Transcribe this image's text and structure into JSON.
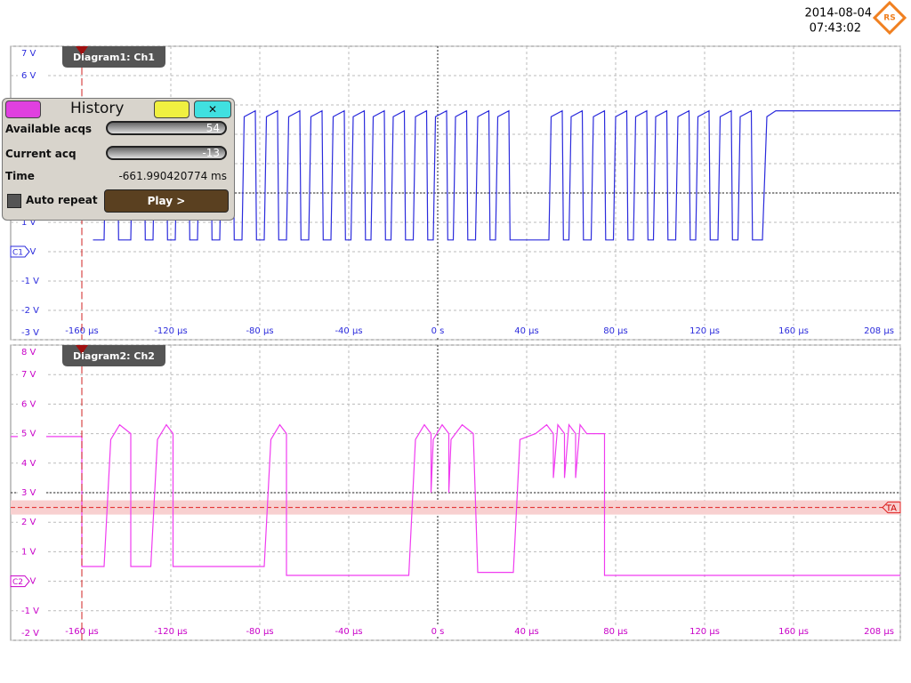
{
  "header": {
    "date": "2014-08-04",
    "time": "07:43:02"
  },
  "history": {
    "title": "History",
    "available_label": "Available acqs",
    "available": 54,
    "current_label": "Current acq",
    "current": -13,
    "time_label": "Time",
    "time": "-661.990420774 ms",
    "auto_repeat": "Auto repeat",
    "play": "Play >"
  },
  "chart_data": [
    {
      "type": "line",
      "title": "Diagram1: Ch1",
      "channel_label": "C1",
      "color": "#2b2bdc",
      "label_color": "#2b2bdc",
      "xlim": [
        -192,
        208
      ],
      "ylim": [
        -3,
        7
      ],
      "grid": true,
      "ground_level": 0,
      "reference_level": 2,
      "marker_x": -160,
      "xticks": [
        {
          "value": -160,
          "label": "-160 µs"
        },
        {
          "value": -120,
          "label": "-120 µs"
        },
        {
          "value": -80,
          "label": "-80 µs"
        },
        {
          "value": -40,
          "label": "-40 µs"
        },
        {
          "value": 0,
          "label": "0 s"
        },
        {
          "value": 40,
          "label": "40 µs"
        },
        {
          "value": 80,
          "label": "80 µs"
        },
        {
          "value": 120,
          "label": "120 µs"
        },
        {
          "value": 160,
          "label": "160 µs"
        },
        {
          "value": 208,
          "label": "208 µs"
        }
      ],
      "yticks": [
        {
          "value": 7,
          "label": "7 V"
        },
        {
          "value": 6,
          "label": "6 V"
        },
        {
          "value": 5,
          "label": "5 V"
        },
        {
          "value": 4,
          "label": "4 V"
        },
        {
          "value": 3,
          "label": "3 V"
        },
        {
          "value": 2,
          "label": "2 V"
        },
        {
          "value": 1,
          "label": "1 V"
        },
        {
          "value": 0,
          "label": "0 V"
        },
        {
          "value": -1,
          "label": "-1 V"
        },
        {
          "value": -2,
          "label": "-2 V"
        },
        {
          "value": -3,
          "label": "-3 V"
        }
      ],
      "x": [
        -155,
        -150,
        -149,
        -144,
        -143.5,
        -138,
        -137,
        -132,
        -131.5,
        -128,
        -127,
        -122,
        -121.5,
        -118,
        -117,
        -112,
        -111.5,
        -108,
        -107,
        -102,
        -101.5,
        -98,
        -97,
        -92,
        -91.5,
        -88,
        -87,
        -82,
        -81.5,
        -78,
        -77,
        -72,
        -71.5,
        -68,
        -67,
        -62,
        -61.5,
        -58,
        -57,
        -52,
        -51.5,
        -48,
        -47,
        -42,
        -41.5,
        -39,
        -38,
        -33,
        -32.5,
        -30,
        -29,
        -24,
        -23.5,
        -21,
        -20,
        -15,
        -14.5,
        -11,
        -10,
        -5,
        -4.5,
        -2,
        -1,
        4,
        4.5,
        7,
        8,
        13,
        13.5,
        17,
        18,
        23,
        23.5,
        26,
        27,
        32,
        32.5,
        50,
        51,
        56,
        56.5,
        59,
        60,
        65,
        65.5,
        69,
        70,
        75,
        75.5,
        79,
        80,
        85,
        85.5,
        88,
        89,
        94,
        94.5,
        97,
        98,
        103,
        103.5,
        107,
        108,
        113,
        113.5,
        116,
        117,
        122,
        122.5,
        126,
        127,
        132,
        132.5,
        135,
        136,
        141,
        141.5,
        146,
        148,
        152,
        208
      ],
      "values": [
        0.4,
        0.4,
        4.6,
        4.8,
        0.4,
        0.4,
        4.6,
        4.8,
        0.4,
        0.4,
        4.6,
        4.8,
        0.4,
        0.4,
        4.6,
        4.8,
        0.4,
        0.4,
        4.6,
        4.8,
        0.4,
        0.4,
        4.6,
        4.8,
        0.4,
        0.4,
        4.6,
        4.8,
        0.4,
        0.4,
        4.6,
        4.8,
        0.4,
        0.4,
        4.6,
        4.8,
        0.4,
        0.4,
        4.6,
        4.8,
        0.4,
        0.4,
        4.6,
        4.8,
        0.4,
        0.4,
        4.6,
        4.8,
        0.4,
        0.4,
        4.6,
        4.8,
        0.4,
        0.4,
        4.6,
        4.8,
        0.4,
        0.4,
        4.6,
        4.8,
        0.4,
        0.4,
        4.6,
        4.8,
        0.4,
        0.4,
        4.6,
        4.8,
        0.4,
        0.4,
        4.6,
        4.8,
        0.4,
        0.4,
        4.6,
        4.8,
        0.4,
        0.4,
        4.6,
        4.8,
        0.4,
        0.4,
        4.6,
        4.8,
        0.4,
        0.4,
        4.6,
        4.8,
        0.4,
        0.4,
        4.6,
        4.8,
        0.4,
        0.4,
        4.6,
        4.8,
        0.4,
        0.4,
        4.6,
        4.8,
        0.4,
        0.4,
        4.6,
        4.8,
        0.4,
        0.4,
        4.6,
        4.8,
        0.4,
        0.4,
        4.6,
        4.8,
        0.4,
        0.4,
        4.6,
        4.8,
        0.4,
        0.4,
        4.6,
        4.8,
        4.8
      ]
    },
    {
      "type": "line",
      "title": "Diagram2: Ch2",
      "channel_label": "C2",
      "color": "#f03cf0",
      "label_color": "#c800c8",
      "xlim": [
        -192,
        208
      ],
      "ylim": [
        -2,
        8
      ],
      "grid": true,
      "ground_level": 0,
      "reference_level": 3,
      "marker_x": -160,
      "trigger_level": 2.5,
      "trigger_label": "TA",
      "xticks": [
        {
          "value": -160,
          "label": "-160 µs"
        },
        {
          "value": -120,
          "label": "-120 µs"
        },
        {
          "value": -80,
          "label": "-80 µs"
        },
        {
          "value": -40,
          "label": "-40 µs"
        },
        {
          "value": 0,
          "label": "0 s"
        },
        {
          "value": 40,
          "label": "40 µs"
        },
        {
          "value": 80,
          "label": "80 µs"
        },
        {
          "value": 120,
          "label": "120 µs"
        },
        {
          "value": 160,
          "label": "160 µs"
        },
        {
          "value": 208,
          "label": "208 µs"
        }
      ],
      "yticks": [
        {
          "value": 8,
          "label": "8 V"
        },
        {
          "value": 7,
          "label": "7 V"
        },
        {
          "value": 6,
          "label": "6 V"
        },
        {
          "value": 5,
          "label": "5 V"
        },
        {
          "value": 4,
          "label": "4 V"
        },
        {
          "value": 3,
          "label": "3 V"
        },
        {
          "value": 2,
          "label": "2 V"
        },
        {
          "value": 1,
          "label": "1 V"
        },
        {
          "value": 0,
          "label": "0 V"
        },
        {
          "value": -1,
          "label": "-1 V"
        },
        {
          "value": -2,
          "label": "-2 V"
        }
      ],
      "x": [
        -192,
        -160,
        -160,
        -150,
        -147,
        -143,
        -138,
        -138,
        -129,
        -126,
        -122,
        -119,
        -119,
        -78,
        -75,
        -71,
        -68,
        -68,
        -13,
        -10,
        -6,
        -3,
        -3,
        -2,
        2,
        5,
        5,
        6,
        11,
        16,
        18,
        34,
        37,
        44,
        49,
        52,
        52,
        54,
        57,
        57,
        59,
        62,
        62,
        64,
        67,
        75,
        75,
        208
      ],
      "values": [
        4.9,
        4.9,
        0.5,
        0.5,
        4.8,
        5.3,
        5.0,
        0.5,
        0.5,
        4.8,
        5.3,
        5.0,
        0.5,
        0.5,
        4.8,
        5.3,
        5.0,
        0.2,
        0.2,
        4.8,
        5.3,
        5.0,
        3.0,
        4.8,
        5.3,
        5.0,
        3.0,
        4.8,
        5.3,
        5.0,
        0.3,
        0.3,
        4.8,
        5.0,
        5.3,
        5.0,
        3.5,
        5.3,
        5.0,
        3.5,
        5.3,
        5.0,
        3.5,
        5.3,
        5.0,
        5.0,
        0.2,
        0.2
      ]
    }
  ]
}
